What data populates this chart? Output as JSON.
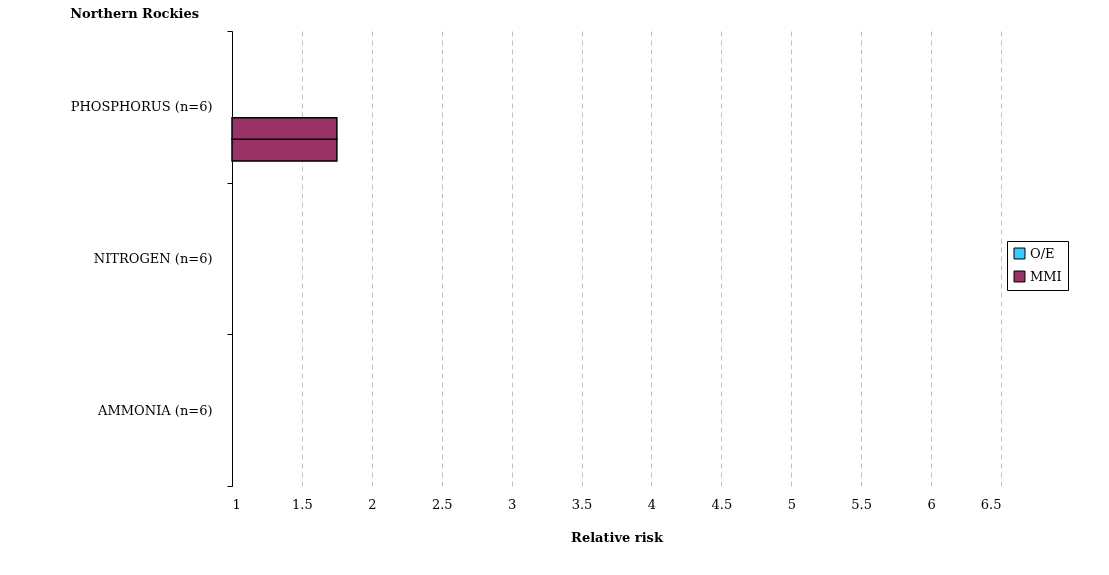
{
  "chart_data": {
    "type": "bar",
    "orientation": "horizontal",
    "title": "Northern Rockies",
    "xlabel": "Relative risk",
    "categories": [
      "PHOSPHORUS (n=6)",
      "NITROGEN (n=6)",
      "AMMONIA (n=6)"
    ],
    "series": [
      {
        "name": "O/E",
        "color": "#33ccff",
        "values": [
          null,
          null,
          null
        ]
      },
      {
        "color": "#993366",
        "values": [
          1.75,
          null,
          null
        ]
      },
      {
        "name": "MMI",
        "color": "#993366",
        "values": [
          1.75,
          null,
          null
        ]
      }
    ],
    "xlim": [
      1,
      6.5
    ],
    "xticks": [
      1,
      1.5,
      2,
      2.5,
      3,
      3.5,
      4,
      4.5,
      5,
      5.5,
      6,
      6.5
    ],
    "grid": "x",
    "legend": "right"
  }
}
